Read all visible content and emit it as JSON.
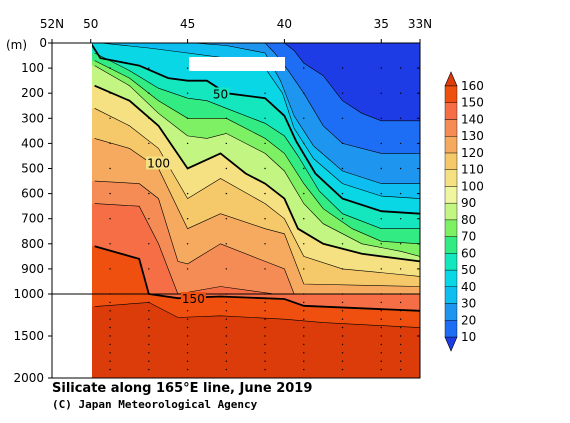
{
  "chart_data": {
    "type": "heatmap",
    "title": "Silicate along 165°E line, June 2019",
    "credit": "(C) Japan Meteorological Agency",
    "y_unit": "(m)",
    "x_tick_labels": [
      {
        "label": "52N",
        "lat": 52
      },
      {
        "label": "50",
        "lat": 50
      },
      {
        "label": "45",
        "lat": 45
      },
      {
        "label": "40",
        "lat": 40
      },
      {
        "label": "35",
        "lat": 35
      },
      {
        "label": "33N",
        "lat": 33
      }
    ],
    "y_tick_labels": [
      {
        "label": "0",
        "depth": 0
      },
      {
        "label": "100",
        "depth": 100
      },
      {
        "label": "200",
        "depth": 200
      },
      {
        "label": "300",
        "depth": 300
      },
      {
        "label": "400",
        "depth": 400
      },
      {
        "label": "500",
        "depth": 500
      },
      {
        "label": "600",
        "depth": 600
      },
      {
        "label": "700",
        "depth": 700
      },
      {
        "label": "800",
        "depth": 800
      },
      {
        "label": "900",
        "depth": 900
      },
      {
        "label": "1000",
        "depth": 1000
      },
      {
        "label": "1500",
        "depth": 1500
      },
      {
        "label": "2000",
        "depth": 2000
      }
    ],
    "xlim": [
      52,
      33
    ],
    "ylim": [
      0,
      2000
    ],
    "y_axis_break": 1000,
    "contour_labels": [
      {
        "text": "50",
        "lat": 43.3,
        "depth": 205
      },
      {
        "text": "100",
        "lat": 46.5,
        "depth": 480
      },
      {
        "text": "150",
        "lat": 44.7,
        "depth": 1060
      }
    ],
    "stations_lat": [
      49,
      47,
      45,
      43,
      41,
      39,
      37,
      35,
      34
    ],
    "legend_levels": [
      10,
      20,
      30,
      40,
      50,
      60,
      70,
      80,
      90,
      100,
      110,
      120,
      130,
      140,
      150,
      160
    ],
    "legend_colors": [
      "#1e3ce6",
      "#1e6ef5",
      "#1e96f0",
      "#0fbef0",
      "#0ad7e6",
      "#14e6be",
      "#32eb82",
      "#7df064",
      "#c3f582",
      "#f0f5a0",
      "#f5e182",
      "#f5c869",
      "#f5aa5f",
      "#f58c55",
      "#f56e46",
      "#f0500f",
      "#dc3c0a"
    ],
    "contours": [
      {
        "level": 10,
        "points": [
          [
            40,
            0
          ],
          [
            39.5,
            30
          ],
          [
            39,
            80
          ],
          [
            38,
            130
          ],
          [
            37,
            230
          ],
          [
            36,
            280
          ],
          [
            35,
            310
          ],
          [
            33,
            310
          ]
        ]
      },
      {
        "level": 20,
        "points": [
          [
            41,
            0
          ],
          [
            40.5,
            40
          ],
          [
            39.8,
            110
          ],
          [
            39,
            200
          ],
          [
            38,
            330
          ],
          [
            37,
            400
          ],
          [
            35,
            440
          ],
          [
            33,
            440
          ]
        ]
      },
      {
        "level": 30,
        "points": [
          [
            44.7,
            0
          ],
          [
            43,
            10
          ],
          [
            41,
            40
          ],
          [
            40.2,
            150
          ],
          [
            39.5,
            290
          ],
          [
            38.5,
            410
          ],
          [
            37,
            510
          ],
          [
            35,
            560
          ],
          [
            33,
            560
          ]
        ]
      },
      {
        "level": 40,
        "points": [
          [
            49.5,
            0
          ],
          [
            47,
            20
          ],
          [
            45,
            40
          ],
          [
            43,
            60
          ],
          [
            41,
            100
          ],
          [
            40.1,
            200
          ],
          [
            39.5,
            340
          ],
          [
            38.5,
            460
          ],
          [
            37,
            560
          ],
          [
            35,
            610
          ],
          [
            33,
            620
          ]
        ]
      },
      {
        "level": 50,
        "points": [
          [
            50,
            0
          ],
          [
            49.5,
            60
          ],
          [
            47.5,
            90
          ],
          [
            46,
            140
          ],
          [
            45,
            150
          ],
          [
            44,
            150
          ],
          [
            43,
            200
          ],
          [
            41,
            220
          ],
          [
            40,
            290
          ],
          [
            39.4,
            390
          ],
          [
            38.4,
            520
          ],
          [
            37,
            620
          ],
          [
            35,
            670
          ],
          [
            33,
            680
          ]
        ]
      },
      {
        "level": 60,
        "points": [
          [
            49.8,
            40
          ],
          [
            48,
            110
          ],
          [
            46.5,
            180
          ],
          [
            45,
            220
          ],
          [
            44,
            230
          ],
          [
            43,
            260
          ],
          [
            41,
            320
          ],
          [
            40,
            370
          ],
          [
            39.3,
            450
          ],
          [
            38.2,
            590
          ],
          [
            37,
            680
          ],
          [
            35,
            740
          ],
          [
            33,
            740
          ]
        ]
      },
      {
        "level": 70,
        "points": [
          [
            49.8,
            70
          ],
          [
            48,
            140
          ],
          [
            46.5,
            230
          ],
          [
            45,
            300
          ],
          [
            44,
            300
          ],
          [
            43,
            300
          ],
          [
            41,
            380
          ],
          [
            40,
            440
          ],
          [
            39,
            560
          ],
          [
            38,
            660
          ],
          [
            36.5,
            740
          ],
          [
            35,
            790
          ],
          [
            33,
            800
          ]
        ]
      },
      {
        "level": 80,
        "points": [
          [
            49.8,
            90
          ],
          [
            48,
            170
          ],
          [
            46.5,
            280
          ],
          [
            45,
            370
          ],
          [
            44,
            380
          ],
          [
            43,
            360
          ],
          [
            41,
            440
          ],
          [
            40,
            510
          ],
          [
            39,
            640
          ],
          [
            38,
            720
          ],
          [
            36,
            800
          ],
          [
            34,
            830
          ],
          [
            33,
            850
          ]
        ]
      },
      {
        "level": 100,
        "points": [
          [
            49.8,
            170
          ],
          [
            48,
            230
          ],
          [
            46.5,
            330
          ],
          [
            45,
            500
          ],
          [
            43.3,
            440
          ],
          [
            42,
            520
          ],
          [
            41,
            560
          ],
          [
            40,
            620
          ],
          [
            39.3,
            740
          ],
          [
            38,
            800
          ],
          [
            36,
            840
          ],
          [
            33,
            870
          ]
        ]
      },
      {
        "level": 110,
        "points": [
          [
            49.8,
            260
          ],
          [
            48,
            330
          ],
          [
            46.5,
            420
          ],
          [
            45,
            620
          ],
          [
            43.3,
            540
          ],
          [
            41,
            640
          ],
          [
            40,
            700
          ],
          [
            39,
            850
          ],
          [
            37,
            900
          ],
          [
            33,
            930
          ]
        ]
      },
      {
        "level": 120,
        "points": [
          [
            49.8,
            380
          ],
          [
            48,
            420
          ],
          [
            46.5,
            500
          ],
          [
            45,
            740
          ],
          [
            43.3,
            680
          ],
          [
            41,
            740
          ],
          [
            40,
            760
          ],
          [
            39,
            960
          ],
          [
            33,
            970
          ]
        ]
      },
      {
        "level": 130,
        "points": [
          [
            49.8,
            550
          ],
          [
            47.5,
            560
          ],
          [
            46.5,
            620
          ],
          [
            45.5,
            870
          ],
          [
            45,
            880
          ],
          [
            43.3,
            800
          ],
          [
            41,
            870
          ],
          [
            40,
            900
          ],
          [
            39.5,
            1000
          ],
          [
            33,
            1000
          ]
        ]
      },
      {
        "level": 140,
        "points": [
          [
            49.8,
            640
          ],
          [
            47.5,
            650
          ],
          [
            46.5,
            800
          ],
          [
            45.5,
            1000
          ],
          [
            43.3,
            970
          ],
          [
            40.5,
            1000
          ],
          [
            33,
            1000
          ]
        ]
      },
      {
        "level": 150,
        "points": [
          [
            49.8,
            810
          ],
          [
            47.5,
            860
          ],
          [
            47,
            1000
          ],
          [
            45.5,
            1050
          ],
          [
            43.3,
            1030
          ],
          [
            40,
            1060
          ],
          [
            39,
            1140
          ],
          [
            33,
            1200
          ]
        ]
      },
      {
        "level": 160,
        "points": [
          [
            49.8,
            1150
          ],
          [
            47,
            1100
          ],
          [
            45.5,
            1280
          ],
          [
            43.3,
            1260
          ],
          [
            40,
            1300
          ],
          [
            38,
            1340
          ],
          [
            33,
            1400
          ]
        ]
      }
    ],
    "bold_levels": [
      50,
      100,
      150
    ]
  }
}
